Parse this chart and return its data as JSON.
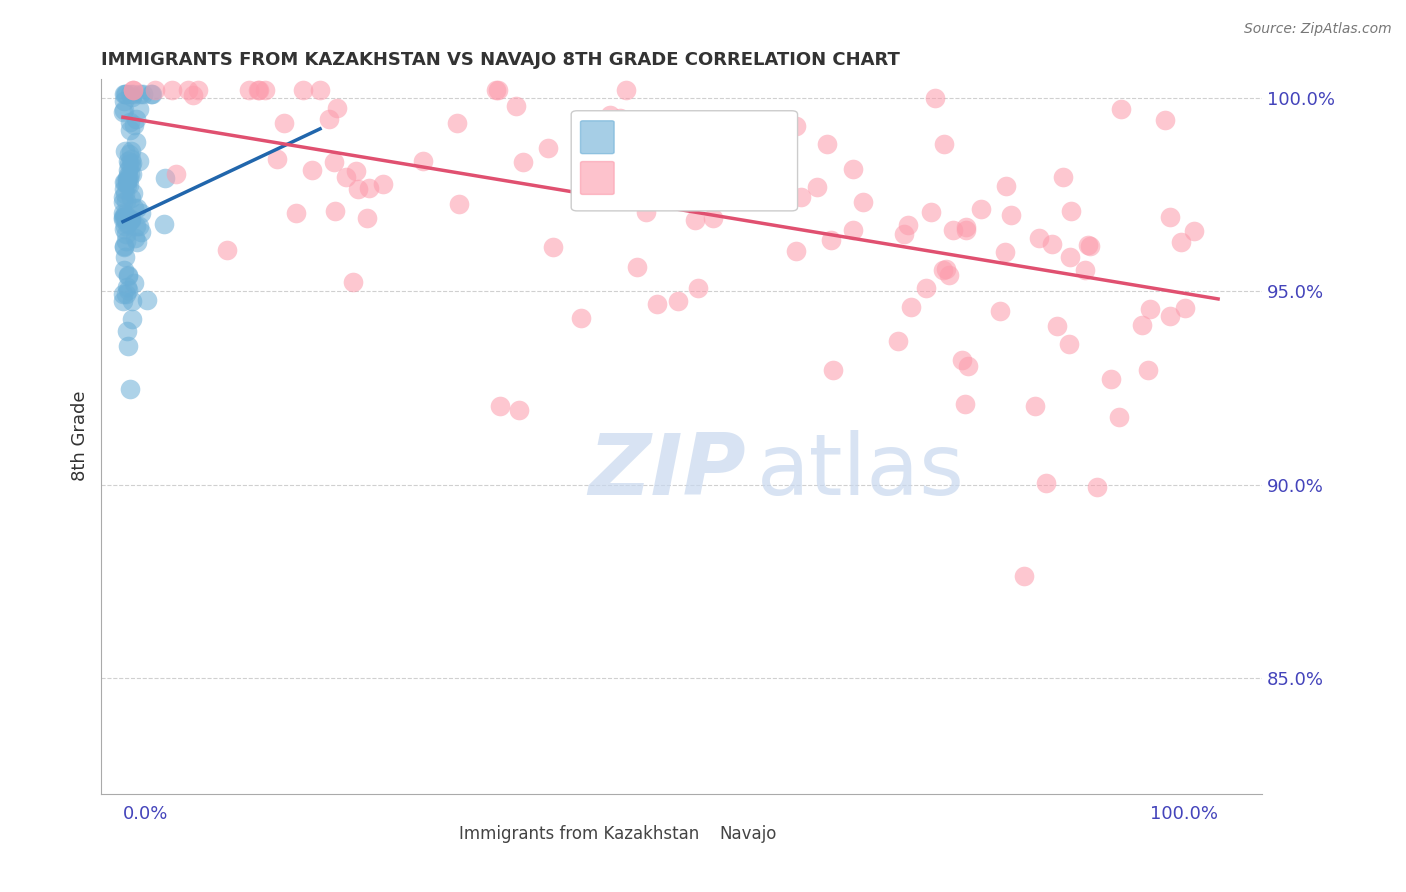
{
  "title": "IMMIGRANTS FROM KAZAKHSTAN VS NAVAJO 8TH GRADE CORRELATION CHART",
  "source": "Source: ZipAtlas.com",
  "ylabel": "8th Grade",
  "blue_color": "#6baed6",
  "pink_color": "#fc9aab",
  "blue_line_color": "#2166ac",
  "pink_line_color": "#e05070",
  "axis_label_color": "#4444bb",
  "grid_color": "#d0d0d0",
  "watermark_color": "#c8d8ee",
  "ylim": [
    0.82,
    1.005
  ],
  "xlim": [
    -0.02,
    1.04
  ],
  "y_ticks": [
    0.85,
    0.9,
    0.95,
    1.0
  ],
  "y_tick_labels": [
    "85.0%",
    "90.0%",
    "95.0%",
    "100.0%"
  ]
}
